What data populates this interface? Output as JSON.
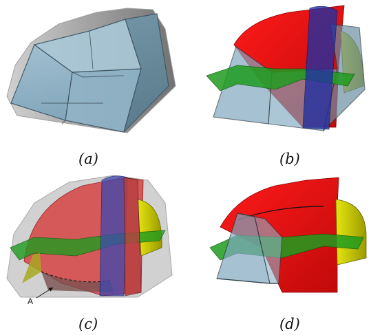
{
  "panels": [
    {
      "id": "a",
      "caption": "(a)"
    },
    {
      "id": "b",
      "caption": "(b)"
    },
    {
      "id": "c",
      "caption": "(c)"
    },
    {
      "id": "d",
      "caption": "(d)"
    }
  ],
  "annotation": {
    "label": "A"
  },
  "colors": {
    "background": "#ffffff",
    "block": "#7fa8c0",
    "block_edge": "#2d3e48",
    "hull": "#bdbdbd",
    "red_surface": "#e01515",
    "blue_surface": "#2430a0",
    "green_surface": "#1f9c1f",
    "yellow_surface": "#c8c800"
  }
}
